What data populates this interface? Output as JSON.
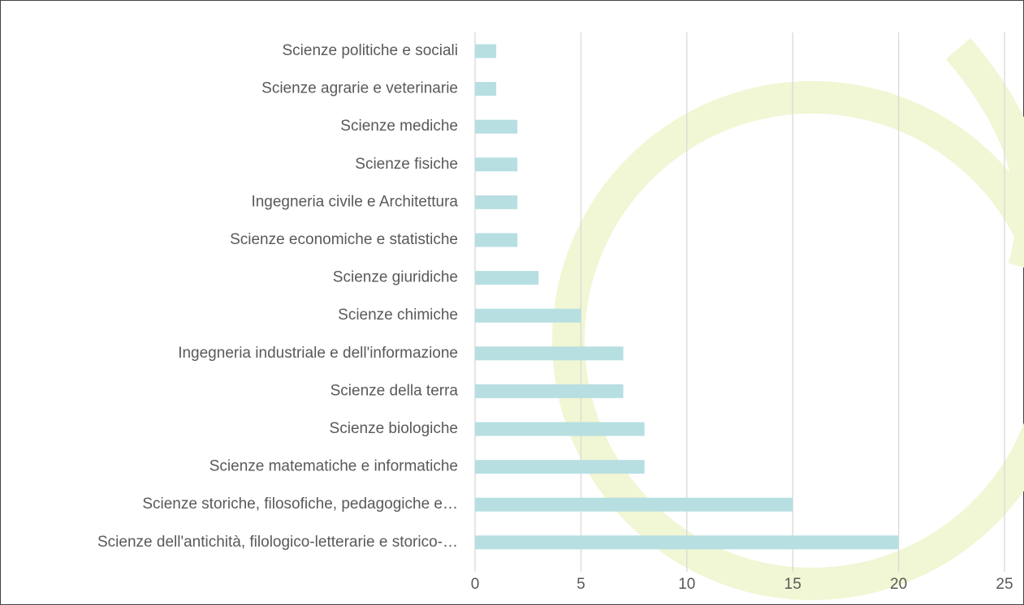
{
  "chart_data": {
    "type": "bar",
    "orientation": "horizontal",
    "categories": [
      "Scienze politiche e sociali",
      "Scienze agrarie e veterinarie",
      "Scienze mediche",
      "Scienze fisiche",
      "Ingegneria civile e Architettura",
      "Scienze economiche e statistiche",
      "Scienze giuridiche",
      "Scienze chimiche",
      "Ingegneria industriale e dell'informazione",
      "Scienze della terra",
      "Scienze biologiche",
      "Scienze matematiche e informatiche",
      "Scienze storiche, filosofiche, pedagogiche e…",
      "Scienze dell'antichità, filologico-letterarie e storico-…"
    ],
    "values": [
      1,
      1,
      2,
      2,
      2,
      2,
      3,
      5,
      7,
      7,
      8,
      8,
      15,
      20
    ],
    "color": "#b7dfe2",
    "xlim": [
      0,
      25
    ],
    "xticks": [
      0,
      5,
      10,
      15,
      20,
      25
    ],
    "grid": true
  }
}
